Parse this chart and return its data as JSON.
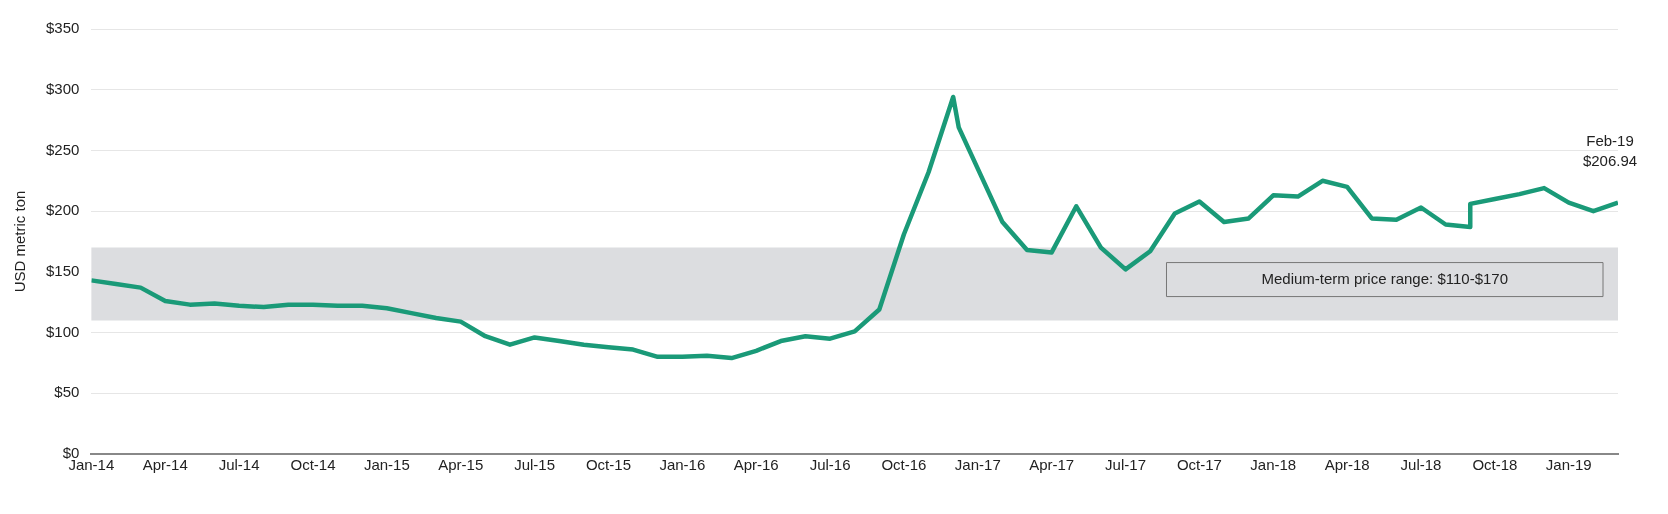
{
  "chart_data": {
    "type": "line",
    "ylabel": "USD metric ton",
    "x": [
      "2014-01",
      "2014-02",
      "2014-03",
      "2014-04",
      "2014-05",
      "2014-06",
      "2014-07",
      "2014-08",
      "2014-09",
      "2014-10",
      "2014-11",
      "2014-12",
      "2015-01",
      "2015-02",
      "2015-03",
      "2015-04",
      "2015-05",
      "2015-06",
      "2015-07",
      "2015-08",
      "2015-09",
      "2015-10",
      "2015-11",
      "2015-12",
      "2016-01",
      "2016-02",
      "2016-03",
      "2016-04",
      "2016-05",
      "2016-06",
      "2016-07",
      "2016-08",
      "2016-09",
      "2016-10",
      "2016-11",
      "2016-12",
      "2016-12-08",
      "2017-02",
      "2017-03",
      "2017-04",
      "2017-05",
      "2017-06",
      "2017-07",
      "2017-08",
      "2017-09",
      "2017-10",
      "2017-11",
      "2017-12",
      "2018-01",
      "2018-02",
      "2018-03",
      "2018-04",
      "2018-05",
      "2018-06",
      "2018-07",
      "2018-08",
      "2018-09",
      "2018-09",
      "2018-10",
      "2018-11",
      "2018-12",
      "2019-01",
      "2019-02",
      "2019-03"
    ],
    "series": [
      {
        "color": "#1a9a78",
        "values": [
          143,
          140,
          137,
          126,
          123,
          124,
          122,
          121,
          123,
          123,
          122,
          122,
          120,
          116,
          112,
          109,
          97,
          90,
          96,
          93,
          90,
          88,
          86,
          80,
          80,
          81,
          79,
          85,
          93,
          97,
          95,
          101,
          119,
          181,
          232,
          294,
          269,
          191,
          168,
          166,
          204,
          170,
          152,
          167,
          198,
          208,
          191,
          194,
          213,
          212,
          225,
          220,
          194,
          193,
          203,
          189,
          187,
          206,
          210,
          214,
          219,
          207,
          200,
          206.94
        ]
      }
    ],
    "xlim": [
      "2014-01",
      "2019-03"
    ],
    "xticks": [
      {
        "value": "2014-01",
        "label": "Jan-14"
      },
      {
        "value": "2014-04",
        "label": "Apr-14"
      },
      {
        "value": "2014-07",
        "label": "Jul-14"
      },
      {
        "value": "2014-10",
        "label": "Oct-14"
      },
      {
        "value": "2015-01",
        "label": "Jan-15"
      },
      {
        "value": "2015-04",
        "label": "Apr-15"
      },
      {
        "value": "2015-07",
        "label": "Jul-15"
      },
      {
        "value": "2015-10",
        "label": "Oct-15"
      },
      {
        "value": "2016-01",
        "label": "Jan-16"
      },
      {
        "value": "2016-04",
        "label": "Apr-16"
      },
      {
        "value": "2016-07",
        "label": "Jul-16"
      },
      {
        "value": "2016-10",
        "label": "Oct-16"
      },
      {
        "value": "2017-01",
        "label": "Jan-17"
      },
      {
        "value": "2017-04",
        "label": "Apr-17"
      },
      {
        "value": "2017-07",
        "label": "Jul-17"
      },
      {
        "value": "2017-10",
        "label": "Oct-17"
      },
      {
        "value": "2018-01",
        "label": "Jan-18"
      },
      {
        "value": "2018-04",
        "label": "Apr-18"
      },
      {
        "value": "2018-07",
        "label": "Jul-18"
      },
      {
        "value": "2018-10",
        "label": "Oct-18"
      },
      {
        "value": "2019-01",
        "label": "Jan-19"
      }
    ],
    "ylim": [
      0,
      350
    ],
    "yticks": [
      {
        "value": 0,
        "label": "$0"
      },
      {
        "value": 50,
        "label": "$50"
      },
      {
        "value": 100,
        "label": "$100"
      },
      {
        "value": 150,
        "label": "$150"
      },
      {
        "value": 200,
        "label": "$200"
      },
      {
        "value": 250,
        "label": "$250"
      },
      {
        "value": 300,
        "label": "$300"
      },
      {
        "value": 350,
        "label": "$350"
      }
    ],
    "bands": [
      {
        "axis": "y",
        "from": 110,
        "to": 170,
        "label": "Medium-term price range: $110-$170",
        "color": "#dcdde0"
      }
    ],
    "annotations": [
      "Feb-19\n$206.94"
    ],
    "grid": "y",
    "marker": "none",
    "line_style": "solid",
    "legend": false
  }
}
